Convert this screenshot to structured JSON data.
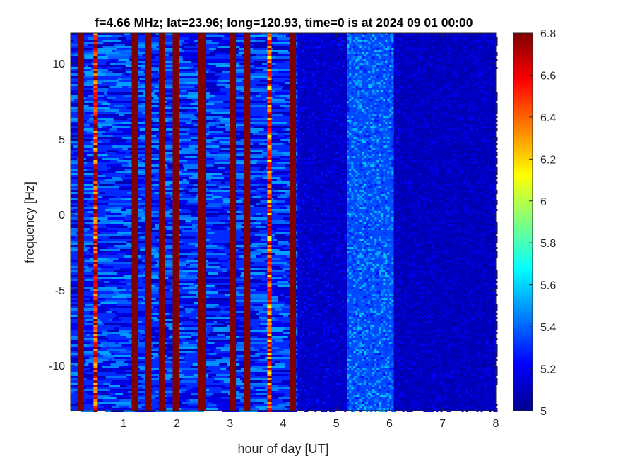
{
  "chart_data": {
    "type": "heatmap",
    "title": "f=4.66 MHz;  lat=23.96; long=120.93, time=0 is at 2024 09 01 00:00",
    "xlabel": "hour of day [UT]",
    "ylabel": "frequency [Hz]",
    "xlim": [
      0,
      8
    ],
    "ylim": [
      -13,
      12
    ],
    "xticks": [
      1,
      2,
      3,
      4,
      5,
      6,
      7,
      8
    ],
    "xtick_labels": [
      "1",
      "2",
      "3",
      "4",
      "5",
      "6",
      "7",
      "8"
    ],
    "yticks": [
      -10,
      -5,
      0,
      5,
      10
    ],
    "ytick_labels": [
      "-10",
      "-5",
      "0",
      "5",
      "10"
    ],
    "colorbar": {
      "colormap": "jet",
      "clim": [
        5,
        6.8
      ],
      "ticks": [
        5,
        5.2,
        5.4,
        5.6,
        5.8,
        6,
        6.2,
        6.4,
        6.6,
        6.8
      ],
      "tick_labels": [
        "5",
        "5.2",
        "5.4",
        "5.6",
        "5.8",
        "6",
        "6.2",
        "6.4",
        "6.6",
        "6.8"
      ]
    },
    "saturated_bands_hour": [
      [
        0.13,
        0.25
      ],
      [
        1.15,
        1.27
      ],
      [
        1.4,
        1.52
      ],
      [
        1.66,
        1.78
      ],
      [
        1.92,
        2.04
      ],
      [
        2.4,
        2.55
      ],
      [
        3.0,
        3.11
      ],
      [
        3.26,
        3.38
      ],
      [
        4.13,
        4.24
      ]
    ],
    "bright_line_hours": [
      {
        "hour": 0.47,
        "level": 6.6
      },
      {
        "hour": 3.74,
        "level": 6.5
      }
    ],
    "segments": [
      {
        "hours": [
          0.0,
          4.27
        ],
        "mean_level": 5.3,
        "spread": 0.22
      },
      {
        "hours": [
          4.27,
          5.2
        ],
        "mean_level": 5.12,
        "spread": 0.1
      },
      {
        "hours": [
          5.2,
          6.08
        ],
        "mean_level": 5.35,
        "spread": 0.18
      },
      {
        "hours": [
          6.08,
          8.0
        ],
        "mean_level": 5.1,
        "spread": 0.09
      }
    ],
    "grid": false
  }
}
